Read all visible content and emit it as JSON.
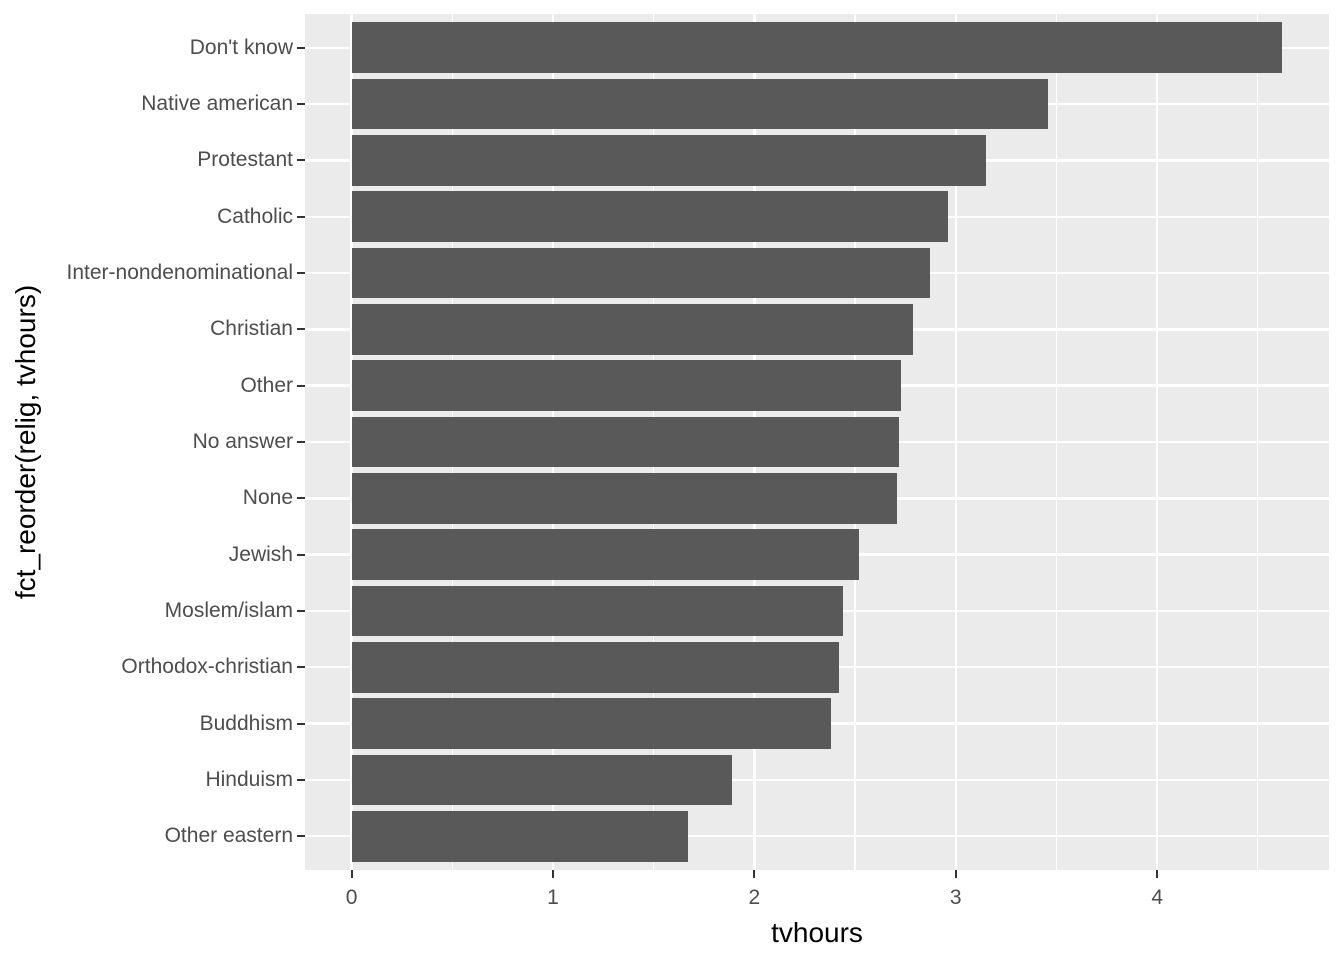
{
  "chart_data": {
    "type": "bar",
    "orientation": "horizontal",
    "title": "",
    "xlabel": "tvhours",
    "ylabel": "fct_reorder(relig, tvhours)",
    "categories": [
      "Don't know",
      "Native american",
      "Protestant",
      "Catholic",
      "Inter-nondenominational",
      "Christian",
      "Other",
      "No answer",
      "None",
      "Jewish",
      "Moslem/islam",
      "Orthodox-christian",
      "Buddhism",
      "Hinduism",
      "Other eastern"
    ],
    "values": [
      4.62,
      3.46,
      3.15,
      2.96,
      2.87,
      2.79,
      2.73,
      2.72,
      2.71,
      2.52,
      2.44,
      2.42,
      2.38,
      1.89,
      1.67
    ],
    "x_major_ticks": [
      0,
      1,
      2,
      3,
      4
    ],
    "x_major_tick_labels": [
      "0",
      "1",
      "2",
      "3",
      "4"
    ],
    "x_minor_ticks": [
      0.5,
      1.5,
      2.5,
      3.5,
      4.5
    ],
    "xlim": [
      -0.2311,
      4.8532
    ],
    "grid": "on",
    "legend": "none",
    "colors": {
      "bar_fill": "#595959",
      "panel_background": "#EBEBEB",
      "gridline": "#FFFFFF",
      "tick_mark": "#333333",
      "tick_label": "#4D4D4D",
      "axis_title": "#000000",
      "figure_background": "#FFFFFF"
    }
  }
}
